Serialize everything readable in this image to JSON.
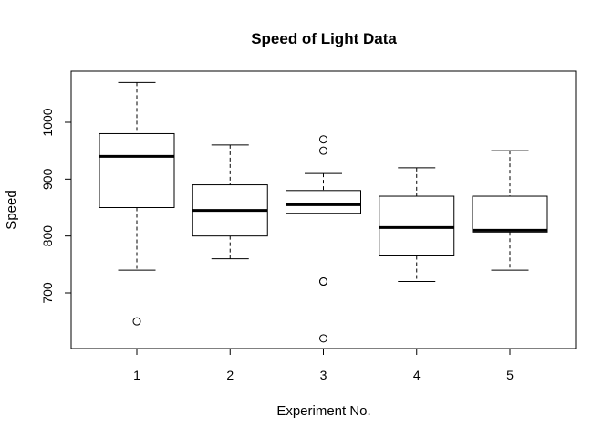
{
  "chart_data": {
    "type": "box",
    "title": "Speed of Light Data",
    "xlabel": "Experiment No.",
    "ylabel": "Speed",
    "categories": [
      "1",
      "2",
      "3",
      "4",
      "5"
    ],
    "y_ticks": [
      "700",
      "800",
      "900",
      "1000"
    ],
    "ylim": [
      600,
      1090
    ],
    "boxes": [
      {
        "category": "1",
        "whisker_low": 740,
        "q1": 850,
        "median": 940,
        "q3": 980,
        "whisker_high": 1070,
        "outliers": [
          650
        ]
      },
      {
        "category": "2",
        "whisker_low": 760,
        "q1": 800,
        "median": 845,
        "q3": 890,
        "whisker_high": 960,
        "outliers": []
      },
      {
        "category": "3",
        "whisker_low": 840,
        "q1": 840,
        "median": 855,
        "q3": 880,
        "whisker_high": 910,
        "outliers": [
          620,
          720,
          720,
          950,
          970
        ]
      },
      {
        "category": "4",
        "whisker_low": 720,
        "q1": 765,
        "median": 815,
        "q3": 870,
        "whisker_high": 920,
        "outliers": []
      },
      {
        "category": "5",
        "whisker_low": 740,
        "q1": 807,
        "median": 810,
        "q3": 870,
        "whisker_high": 950,
        "outliers": []
      }
    ]
  }
}
